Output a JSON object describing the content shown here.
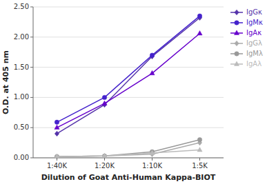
{
  "chart_data": {
    "type": "line",
    "xlabel": "Dilution of Goat Anti-Human Kappa-BIOT",
    "ylabel": "O.D. at 405 nm",
    "categories": [
      "1:40K",
      "1:20K",
      "1:10K",
      "1:5K"
    ],
    "series": [
      {
        "name": "IgGκ",
        "color": "#5533AA",
        "marker": "diamond",
        "values": [
          0.4,
          0.88,
          1.68,
          2.32
        ]
      },
      {
        "name": "IgMκ",
        "color": "#4422CC",
        "marker": "circle",
        "values": [
          0.59,
          1.0,
          1.7,
          2.35
        ]
      },
      {
        "name": "IgAκ",
        "color": "#6600CC",
        "marker": "triangle",
        "values": [
          0.5,
          0.9,
          1.4,
          2.06
        ]
      },
      {
        "name": "IgGλ",
        "color": "#AAAAAA",
        "marker": "diamond",
        "values": [
          0.02,
          0.03,
          0.06,
          0.25
        ]
      },
      {
        "name": "IgMλ",
        "color": "#999999",
        "marker": "circle",
        "values": [
          0.02,
          0.03,
          0.1,
          0.3
        ]
      },
      {
        "name": "IgAλ",
        "color": "#BBBBBB",
        "marker": "triangle",
        "values": [
          0.02,
          0.03,
          0.08,
          0.13
        ]
      }
    ],
    "ylim": [
      0.0,
      2.5
    ],
    "yticks": [
      {
        "value": 0.0,
        "label": "0.00"
      },
      {
        "value": 0.5,
        "label": "0.50"
      },
      {
        "value": 1.0,
        "label": "1.00"
      },
      {
        "value": 1.5,
        "label": "1.50"
      },
      {
        "value": 2.0,
        "label": "2.00"
      },
      {
        "value": 2.5,
        "label": "2.50"
      }
    ],
    "grid": true,
    "legend": "right"
  }
}
